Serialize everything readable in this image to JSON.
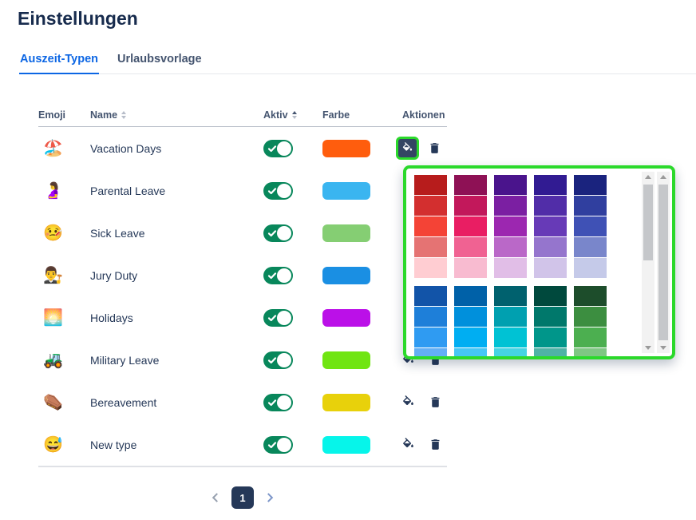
{
  "page": {
    "title": "Einstellungen"
  },
  "tabs": [
    {
      "label": "Auszeit-Typen",
      "active": true
    },
    {
      "label": "Urlaubsvorlage",
      "active": false
    }
  ],
  "table": {
    "headers": [
      {
        "label": "Emoji",
        "sortable": false
      },
      {
        "label": "Name",
        "sortable": true,
        "sort": "none"
      },
      {
        "label": "Aktiv",
        "sortable": true,
        "sort": "asc"
      },
      {
        "label": "Farbe",
        "sortable": false
      },
      {
        "label": "Aktionen",
        "sortable": false
      }
    ],
    "rows": [
      {
        "emoji": "🏖️",
        "name": "Vacation Days",
        "active": true,
        "color": "#ff5d0d"
      },
      {
        "emoji": "🤰",
        "name": "Parental Leave",
        "active": true,
        "color": "#3ab5f0"
      },
      {
        "emoji": "🤒",
        "name": "Sick Leave",
        "active": true,
        "color": "#85ce73"
      },
      {
        "emoji": "👨‍⚖️",
        "name": "Jury Duty",
        "active": true,
        "color": "#1a8fe3"
      },
      {
        "emoji": "🌅",
        "name": "Holidays",
        "active": true,
        "color": "#bb10e8"
      },
      {
        "emoji": "🚜",
        "name": "Military Leave",
        "active": true,
        "color": "#70e512"
      },
      {
        "emoji": "⚰️",
        "name": "Bereavement",
        "active": true,
        "color": "#e8d10b"
      },
      {
        "emoji": "😅",
        "name": "New type",
        "active": true,
        "color": "#06f5ea"
      }
    ]
  },
  "color_picker": {
    "open_for_row_index": 0,
    "highlight_color": "#2bd92b",
    "palette_blocks": [
      {
        "columns": [
          [
            "#b71c1c",
            "#d32f2f",
            "#f44336",
            "#e57373",
            "#ffcdd2"
          ],
          [
            "#8e1155",
            "#c2185b",
            "#e91e63",
            "#f06292",
            "#f8bbd0"
          ],
          [
            "#4a148c",
            "#7b1fa2",
            "#9c27b0",
            "#ba68c8",
            "#e1bee7"
          ],
          [
            "#311b92",
            "#512da8",
            "#673ab7",
            "#9575cd",
            "#d1c4e9"
          ],
          [
            "#1a237e",
            "#303f9f",
            "#3f51b5",
            "#7986cb",
            "#c5cae9"
          ]
        ]
      },
      {
        "columns": [
          [
            "#1254a8",
            "#1e7fd9",
            "#2f9bf2",
            "#63aff5"
          ],
          [
            "#0061a8",
            "#0090dc",
            "#00aef2",
            "#45c7f5"
          ],
          [
            "#00616e",
            "#00a0b0",
            "#00c2d4",
            "#45d4e3"
          ],
          [
            "#00493d",
            "#00786b",
            "#00968a",
            "#4fb3a6"
          ],
          [
            "#1d4d2b",
            "#3c8e40",
            "#4caf50",
            "#7fc783"
          ]
        ]
      }
    ]
  },
  "pagination": {
    "current_page": "1"
  }
}
